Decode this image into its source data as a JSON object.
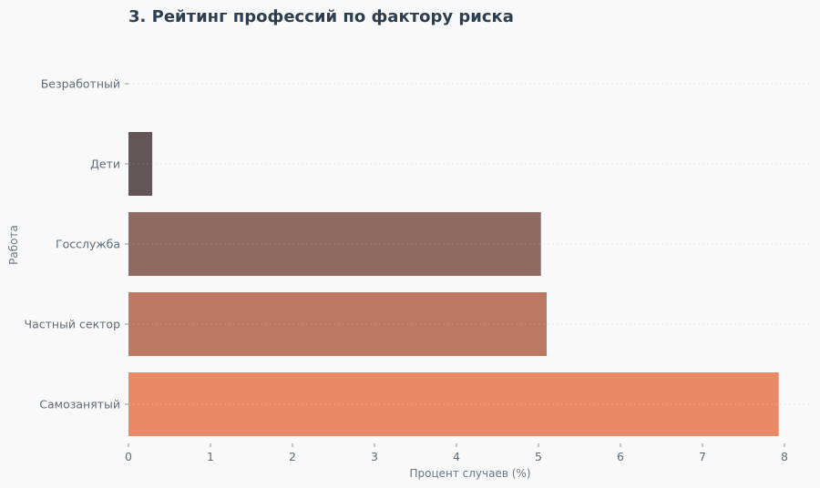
{
  "chart_data": {
    "type": "bar",
    "orientation": "horizontal",
    "title": "3. Рейтинг профессий по фактору риска",
    "xlabel": "Процент случаев (%)",
    "ylabel": "Работа",
    "categories": [
      "Безработный",
      "Дети",
      "Госслужба",
      "Частный сектор",
      "Самозанятый"
    ],
    "values": [
      0,
      0.29,
      5.03,
      5.1,
      7.93
    ],
    "xlim": [
      0,
      8
    ],
    "xticks": [
      "0",
      "1",
      "2",
      "3",
      "4",
      "5",
      "6",
      "7",
      "8"
    ],
    "grid": true,
    "colors": [
      "#6a5a5e",
      "#625659",
      "#8f6a60",
      "#bd7862",
      "#e88a68"
    ]
  }
}
